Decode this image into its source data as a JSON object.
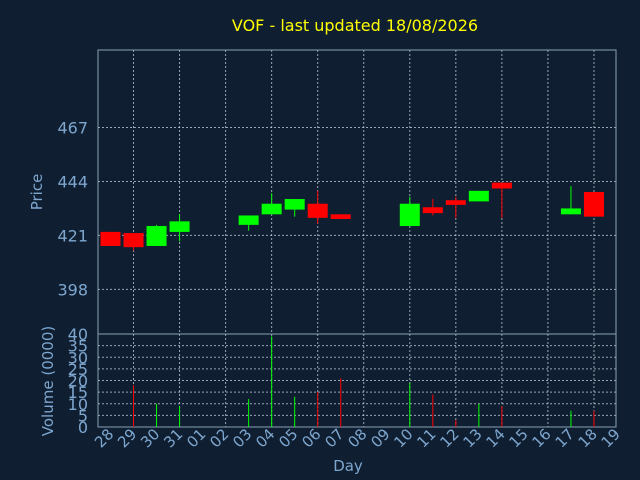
{
  "chart_data": {
    "type": "candlestick",
    "title": "VOF - last updated 18/08/2026",
    "ylabel": "Price",
    "volume_label": "Volume (0000)",
    "xlabel": "Day",
    "price_ticks": [
      398,
      421,
      444,
      467
    ],
    "price_ylim": [
      379,
      500
    ],
    "volume_ticks": [
      0,
      5,
      10,
      15,
      20,
      25,
      30,
      35,
      40
    ],
    "volume_ylim": [
      0,
      40
    ],
    "x_labels": [
      "28",
      "29",
      "30",
      "31",
      "01",
      "02",
      "03",
      "04",
      "05",
      "06",
      "07",
      "08",
      "09",
      "10",
      "11",
      "12",
      "13",
      "14",
      "15",
      "16",
      "17",
      "18",
      "19"
    ],
    "up_color": "#00ff00",
    "down_color": "#ff0000",
    "series": [
      {
        "day": "28",
        "open": 422.5,
        "close": 416.5,
        "high": 422.5,
        "low": 416.5,
        "volume": 0
      },
      {
        "day": "29",
        "open": 422.0,
        "close": 416.0,
        "high": 422.0,
        "low": 414.5,
        "volume": 18
      },
      {
        "day": "30",
        "open": 416.5,
        "close": 425.0,
        "high": 425.5,
        "low": 416.5,
        "volume": 10
      },
      {
        "day": "31",
        "open": 422.5,
        "close": 427.0,
        "high": 430.0,
        "low": 418.5,
        "volume": 9
      },
      {
        "day": "03",
        "open": 425.5,
        "close": 429.5,
        "high": 429.5,
        "low": 423.0,
        "volume": 12
      },
      {
        "day": "04",
        "open": 430.0,
        "close": 434.5,
        "high": 439.0,
        "low": 430.0,
        "volume": 39
      },
      {
        "day": "05",
        "open": 432.0,
        "close": 436.5,
        "high": 436.5,
        "low": 429.0,
        "volume": 13
      },
      {
        "day": "06",
        "open": 434.5,
        "close": 428.5,
        "high": 440.0,
        "low": 426.0,
        "volume": 15
      },
      {
        "day": "07",
        "open": 430.0,
        "close": 428.0,
        "high": 430.0,
        "low": 428.0,
        "volume": 21
      },
      {
        "day": "10",
        "open": 425.0,
        "close": 434.5,
        "high": 437.5,
        "low": 425.0,
        "volume": 19
      },
      {
        "day": "11",
        "open": 433.0,
        "close": 430.5,
        "high": 436.5,
        "low": 429.5,
        "volume": 14
      },
      {
        "day": "12",
        "open": 436.0,
        "close": 434.0,
        "high": 437.5,
        "low": 428.5,
        "volume": 3
      },
      {
        "day": "13",
        "open": 435.5,
        "close": 440.0,
        "high": 440.0,
        "low": 435.5,
        "volume": 10
      },
      {
        "day": "14",
        "open": 443.5,
        "close": 441.0,
        "high": 443.5,
        "low": 428.5,
        "volume": 9
      },
      {
        "day": "17",
        "open": 430.0,
        "close": 432.5,
        "high": 442.0,
        "low": 430.0,
        "volume": 7
      },
      {
        "day": "18",
        "open": 439.5,
        "close": 429.0,
        "high": 439.5,
        "low": 429.0,
        "volume": 7
      }
    ]
  }
}
